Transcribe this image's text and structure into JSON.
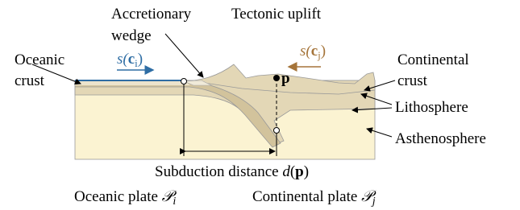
{
  "labels": {
    "accretionary_wedge": [
      "Accretionary",
      "wedge"
    ],
    "tectonic_uplift": "Tectonic uplift",
    "oceanic_crust": [
      "Oceanic",
      "crust"
    ],
    "continental_crust": [
      "Continental",
      "crust"
    ],
    "lithosphere": "Lithosphere",
    "asthenosphere": "Asthenosphere",
    "point": "p",
    "speed_i": [
      "s(",
      "c",
      "i",
      ")"
    ],
    "speed_j": [
      "s(",
      "c",
      "j",
      ")"
    ],
    "subduction_distance": [
      "Subduction distance ",
      "d",
      "(",
      "p",
      ")"
    ],
    "oceanic_plate": [
      "Oceanic plate ",
      "𝒫",
      "i"
    ],
    "continental_plate": [
      "Continental plate ",
      "𝒫",
      "j"
    ]
  }
}
